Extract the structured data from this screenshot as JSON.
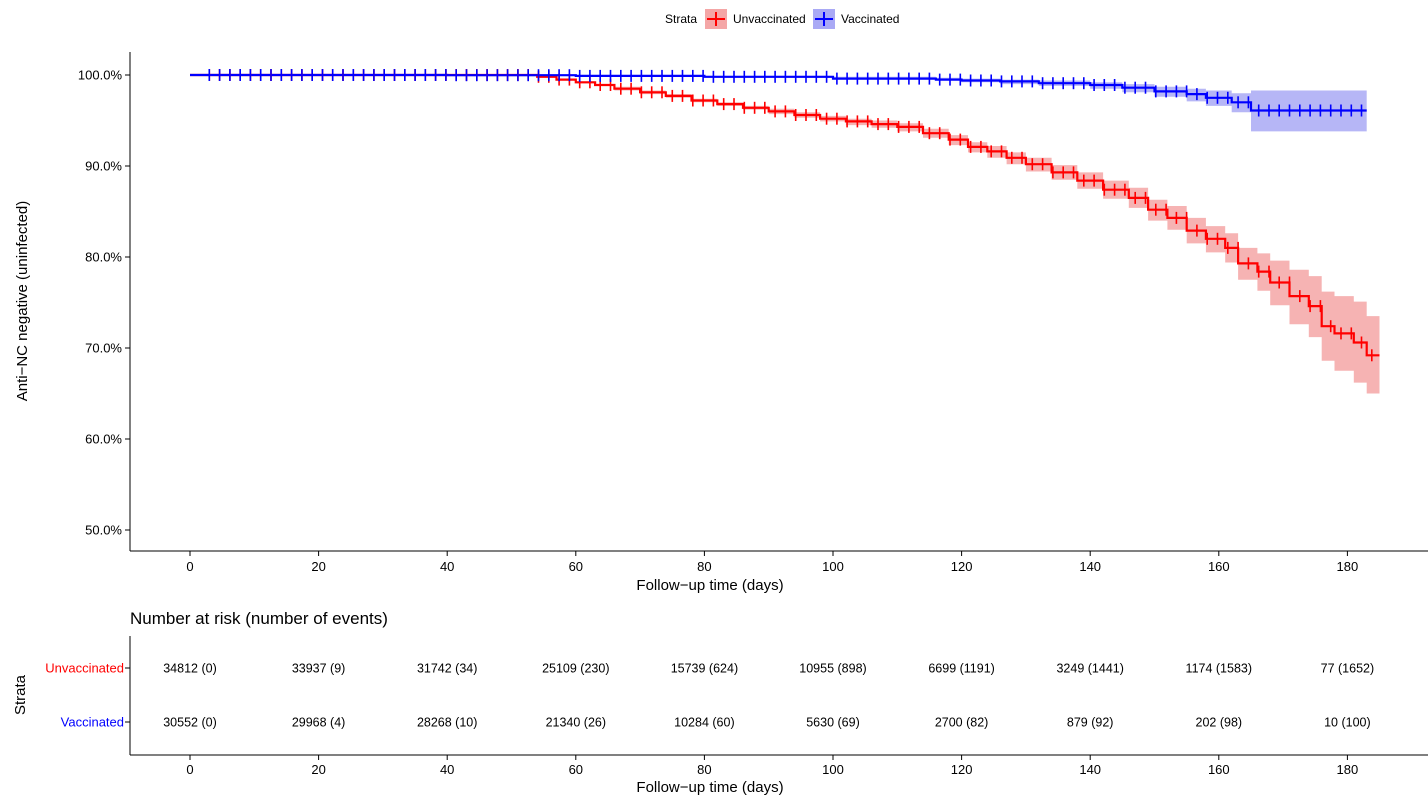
{
  "legend": {
    "title": "Strata",
    "items": [
      {
        "label": "Unvaccinated",
        "color": "#ff0000",
        "fill": "#f4a6a6"
      },
      {
        "label": "Vaccinated",
        "color": "#0000ff",
        "fill": "#a9a9f5"
      }
    ]
  },
  "chart_data": [
    {
      "type": "line",
      "subtype": "kaplan-meier survival curve with 95% CI bands and censor marks",
      "xlabel": "Follow−up time (days)",
      "ylabel": "Anti−NC negative (uninfected)",
      "xlim": [
        -9,
        190
      ],
      "ylim": [
        47.5,
        102.5
      ],
      "x_ticks": [
        0,
        20,
        40,
        60,
        80,
        100,
        120,
        140,
        160,
        180
      ],
      "y_ticks": [
        50,
        60,
        70,
        80,
        90,
        100
      ],
      "y_tick_labels": [
        "50.0%",
        "60.0%",
        "70.0%",
        "80.0%",
        "90.0%",
        "100.0%"
      ],
      "grid": false,
      "legend_position": "top",
      "series": [
        {
          "name": "Unvaccinated",
          "color": "#ff0000",
          "x": [
            0,
            54,
            57,
            60,
            63,
            66,
            70,
            74,
            78,
            82,
            86,
            90,
            94,
            98,
            102,
            106,
            110,
            114,
            118,
            121,
            124,
            127,
            130,
            134,
            138,
            142,
            146,
            149,
            152,
            155,
            158,
            161,
            163,
            166,
            168,
            171,
            174,
            176,
            178,
            181,
            183,
            185
          ],
          "y": [
            100,
            99.8,
            99.5,
            99.2,
            98.9,
            98.5,
            98.1,
            97.7,
            97.2,
            96.8,
            96.4,
            96.0,
            95.6,
            95.2,
            94.9,
            94.6,
            94.3,
            93.6,
            92.9,
            92.1,
            91.6,
            90.9,
            90.2,
            89.3,
            88.4,
            87.4,
            86.5,
            85.2,
            84.3,
            82.9,
            82.0,
            81.0,
            79.3,
            78.4,
            77.2,
            75.7,
            74.6,
            72.4,
            71.6,
            70.6,
            69.2,
            69.2
          ],
          "ci_lower": [
            100,
            99.75,
            99.4,
            99.1,
            98.8,
            98.3,
            97.9,
            97.5,
            97.0,
            96.6,
            96.2,
            95.7,
            95.3,
            94.9,
            94.5,
            94.2,
            93.8,
            93.1,
            92.3,
            91.5,
            90.9,
            90.2,
            89.4,
            88.5,
            87.5,
            86.4,
            85.4,
            84.0,
            83.0,
            81.5,
            80.5,
            79.4,
            77.5,
            76.3,
            74.7,
            72.6,
            71.2,
            68.6,
            67.5,
            66.2,
            65.0,
            65.0
          ],
          "ci_upper": [
            100,
            99.85,
            99.6,
            99.3,
            99.0,
            98.7,
            98.3,
            97.9,
            97.4,
            97.0,
            96.6,
            96.3,
            95.9,
            95.5,
            95.2,
            95.0,
            94.7,
            94.1,
            93.4,
            92.6,
            92.2,
            91.5,
            90.9,
            90.1,
            89.3,
            88.4,
            87.6,
            86.3,
            85.6,
            84.3,
            83.4,
            82.6,
            81.0,
            80.4,
            79.6,
            78.6,
            77.9,
            76.2,
            75.7,
            75.1,
            73.5,
            73.5
          ]
        },
        {
          "name": "Vaccinated",
          "color": "#0000ff",
          "x": [
            0,
            40,
            60,
            80,
            100,
            116,
            120,
            126,
            132,
            140,
            145,
            150,
            155,
            158,
            162,
            165,
            183
          ],
          "y": [
            100,
            99.98,
            99.9,
            99.8,
            99.6,
            99.5,
            99.4,
            99.3,
            99.1,
            98.9,
            98.6,
            98.2,
            97.9,
            97.5,
            97.0,
            96.1,
            96.1
          ],
          "ci_lower": [
            100,
            99.96,
            99.85,
            99.7,
            99.5,
            99.4,
            99.2,
            99.0,
            98.8,
            98.5,
            98.1,
            97.6,
            97.1,
            96.6,
            95.9,
            93.8,
            93.8
          ],
          "ci_upper": [
            100,
            100,
            99.95,
            99.9,
            99.8,
            99.7,
            99.6,
            99.5,
            99.4,
            99.2,
            99.0,
            98.7,
            98.5,
            98.3,
            98.0,
            98.3,
            98.3
          ]
        }
      ]
    },
    {
      "type": "table",
      "title": "Number at risk (number of events)",
      "ylabel": "Strata",
      "xlabel": "Follow−up time (days)",
      "columns": [
        0,
        20,
        40,
        60,
        80,
        100,
        120,
        140,
        160,
        180
      ],
      "rows": [
        {
          "name": "Unvaccinated",
          "color": "#ff0000",
          "cells": [
            "34812 (0)",
            "33937 (9)",
            "31742 (34)",
            "25109 (230)",
            "15739 (624)",
            "10955 (898)",
            "6699 (1191)",
            "3249 (1441)",
            "1174 (1583)",
            "77 (1652)"
          ]
        },
        {
          "name": "Vaccinated",
          "color": "#0000ff",
          "cells": [
            "30552 (0)",
            "29968 (4)",
            "28268 (10)",
            "21340 (26)",
            "10284 (60)",
            "5630 (69)",
            "2700 (82)",
            "879 (92)",
            "202 (98)",
            "10 (100)"
          ]
        }
      ]
    }
  ]
}
